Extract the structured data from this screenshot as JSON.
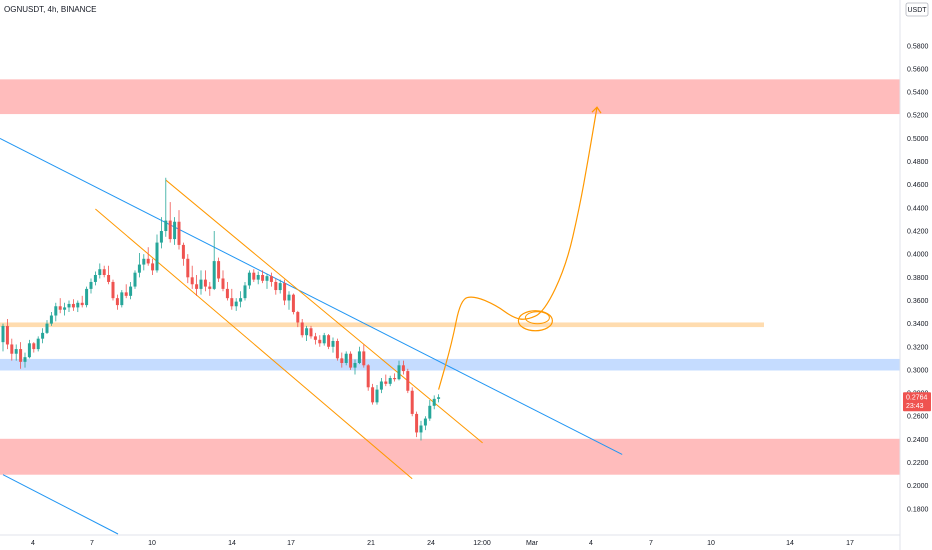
{
  "chart_data": {
    "type": "candlestick",
    "title": "OGNUSDT, 4h, BINANCE",
    "currency": "USDT",
    "y_axis": {
      "ylim": [
        0.16,
        0.604
      ],
      "ticks": [
        "0.1800",
        "0.2000",
        "0.2200",
        "0.2400",
        "0.2600",
        "0.2800",
        "0.3000",
        "0.3200",
        "0.3400",
        "0.3600",
        "0.3800",
        "0.4000",
        "0.4200",
        "0.4400",
        "0.4600",
        "0.4800",
        "0.5000",
        "0.5200",
        "0.5400",
        "0.5600",
        "0.5800"
      ]
    },
    "x_axis": {
      "ticks": [
        "4",
        "7",
        "10",
        "14",
        "17",
        "21",
        "24",
        "12:00",
        "Mar",
        "4",
        "7",
        "10",
        "14",
        "17"
      ]
    },
    "current_price": "0.2764",
    "countdown": "23:43",
    "colors": {
      "up": "#26a69a",
      "down": "#ef5350",
      "price_tag": "#ef5350"
    },
    "zones": [
      {
        "kind": "resistance",
        "low": 0.521,
        "high": 0.551,
        "color": "#ffbcbc"
      },
      {
        "kind": "level",
        "low": 0.337,
        "high": 0.341,
        "color": "#ffdcaf"
      },
      {
        "kind": "level",
        "low": 0.2995,
        "high": 0.3095,
        "color": "#c5dcff"
      },
      {
        "kind": "support",
        "low": 0.2095,
        "high": 0.2405,
        "color": "#ffbcbc"
      }
    ],
    "candles": [
      [
        0.324,
        0.34,
        0.316,
        0.338
      ],
      [
        0.338,
        0.344,
        0.318,
        0.322
      ],
      [
        0.322,
        0.327,
        0.308,
        0.314
      ],
      [
        0.314,
        0.322,
        0.308,
        0.318
      ],
      [
        0.318,
        0.324,
        0.301,
        0.307
      ],
      [
        0.307,
        0.315,
        0.302,
        0.311
      ],
      [
        0.311,
        0.326,
        0.31,
        0.323
      ],
      [
        0.323,
        0.324,
        0.315,
        0.318
      ],
      [
        0.318,
        0.329,
        0.316,
        0.327
      ],
      [
        0.327,
        0.336,
        0.323,
        0.332
      ],
      [
        0.332,
        0.343,
        0.331,
        0.34
      ],
      [
        0.34,
        0.35,
        0.338,
        0.347
      ],
      [
        0.347,
        0.358,
        0.342,
        0.355
      ],
      [
        0.355,
        0.362,
        0.349,
        0.352
      ],
      [
        0.352,
        0.358,
        0.347,
        0.354
      ],
      [
        0.354,
        0.36,
        0.35,
        0.357
      ],
      [
        0.357,
        0.361,
        0.351,
        0.354
      ],
      [
        0.354,
        0.36,
        0.35,
        0.358
      ],
      [
        0.358,
        0.364,
        0.354,
        0.356
      ],
      [
        0.356,
        0.372,
        0.354,
        0.37
      ],
      [
        0.37,
        0.379,
        0.366,
        0.376
      ],
      [
        0.376,
        0.385,
        0.373,
        0.382
      ],
      [
        0.382,
        0.392,
        0.379,
        0.387
      ],
      [
        0.387,
        0.39,
        0.38,
        0.382
      ],
      [
        0.382,
        0.39,
        0.374,
        0.376
      ],
      [
        0.376,
        0.378,
        0.36,
        0.362
      ],
      [
        0.362,
        0.365,
        0.352,
        0.356
      ],
      [
        0.356,
        0.369,
        0.354,
        0.367
      ],
      [
        0.367,
        0.374,
        0.362,
        0.364
      ],
      [
        0.364,
        0.376,
        0.361,
        0.372
      ],
      [
        0.372,
        0.386,
        0.37,
        0.384
      ],
      [
        0.384,
        0.401,
        0.38,
        0.391
      ],
      [
        0.391,
        0.4,
        0.386,
        0.396
      ],
      [
        0.396,
        0.406,
        0.39,
        0.392
      ],
      [
        0.392,
        0.396,
        0.382,
        0.386
      ],
      [
        0.386,
        0.417,
        0.384,
        0.41
      ],
      [
        0.41,
        0.432,
        0.405,
        0.42
      ],
      [
        0.42,
        0.466,
        0.415,
        0.429
      ],
      [
        0.429,
        0.445,
        0.41,
        0.413
      ],
      [
        0.413,
        0.432,
        0.408,
        0.428
      ],
      [
        0.428,
        0.438,
        0.404,
        0.408
      ],
      [
        0.408,
        0.41,
        0.39,
        0.396
      ],
      [
        0.396,
        0.4,
        0.375,
        0.38
      ],
      [
        0.38,
        0.39,
        0.37,
        0.374
      ],
      [
        0.374,
        0.382,
        0.364,
        0.37
      ],
      [
        0.37,
        0.386,
        0.365,
        0.378
      ],
      [
        0.378,
        0.386,
        0.368,
        0.372
      ],
      [
        0.372,
        0.376,
        0.364,
        0.37
      ],
      [
        0.37,
        0.42,
        0.369,
        0.394
      ],
      [
        0.394,
        0.397,
        0.376,
        0.379
      ],
      [
        0.379,
        0.386,
        0.368,
        0.37
      ],
      [
        0.37,
        0.376,
        0.36,
        0.362
      ],
      [
        0.362,
        0.37,
        0.352,
        0.355
      ],
      [
        0.355,
        0.362,
        0.351,
        0.359
      ],
      [
        0.359,
        0.368,
        0.354,
        0.362
      ],
      [
        0.362,
        0.376,
        0.36,
        0.373
      ],
      [
        0.373,
        0.386,
        0.37,
        0.384
      ],
      [
        0.384,
        0.387,
        0.376,
        0.378
      ],
      [
        0.378,
        0.385,
        0.374,
        0.382
      ],
      [
        0.382,
        0.386,
        0.375,
        0.377
      ],
      [
        0.377,
        0.383,
        0.37,
        0.381
      ],
      [
        0.381,
        0.384,
        0.372,
        0.376
      ],
      [
        0.376,
        0.379,
        0.365,
        0.369
      ],
      [
        0.369,
        0.378,
        0.366,
        0.375
      ],
      [
        0.375,
        0.378,
        0.356,
        0.36
      ],
      [
        0.36,
        0.368,
        0.352,
        0.365
      ],
      [
        0.365,
        0.366,
        0.348,
        0.35
      ],
      [
        0.35,
        0.351,
        0.337,
        0.341
      ],
      [
        0.341,
        0.344,
        0.328,
        0.33
      ],
      [
        0.33,
        0.338,
        0.325,
        0.336
      ],
      [
        0.336,
        0.338,
        0.327,
        0.329
      ],
      [
        0.329,
        0.332,
        0.322,
        0.326
      ],
      [
        0.326,
        0.33,
        0.32,
        0.323
      ],
      [
        0.323,
        0.332,
        0.321,
        0.33
      ],
      [
        0.33,
        0.331,
        0.318,
        0.32
      ],
      [
        0.32,
        0.328,
        0.315,
        0.325
      ],
      [
        0.325,
        0.327,
        0.308,
        0.31
      ],
      [
        0.31,
        0.315,
        0.302,
        0.306
      ],
      [
        0.306,
        0.316,
        0.304,
        0.314
      ],
      [
        0.314,
        0.316,
        0.3,
        0.302
      ],
      [
        0.302,
        0.309,
        0.296,
        0.306
      ],
      [
        0.306,
        0.32,
        0.305,
        0.316
      ],
      [
        0.316,
        0.322,
        0.302,
        0.304
      ],
      [
        0.304,
        0.305,
        0.282,
        0.285
      ],
      [
        0.285,
        0.288,
        0.27,
        0.272
      ],
      [
        0.272,
        0.287,
        0.27,
        0.283
      ],
      [
        0.283,
        0.293,
        0.28,
        0.29
      ],
      [
        0.29,
        0.296,
        0.286,
        0.288
      ],
      [
        0.288,
        0.295,
        0.286,
        0.293
      ],
      [
        0.293,
        0.297,
        0.29,
        0.292
      ],
      [
        0.292,
        0.308,
        0.291,
        0.304
      ],
      [
        0.304,
        0.308,
        0.296,
        0.299
      ],
      [
        0.299,
        0.301,
        0.28,
        0.282
      ],
      [
        0.282,
        0.285,
        0.26,
        0.262
      ],
      [
        0.262,
        0.264,
        0.242,
        0.246
      ],
      [
        0.246,
        0.256,
        0.239,
        0.252
      ],
      [
        0.252,
        0.26,
        0.248,
        0.258
      ],
      [
        0.258,
        0.274,
        0.256,
        0.269
      ],
      [
        0.269,
        0.278,
        0.266,
        0.275
      ],
      [
        0.275,
        0.279,
        0.272,
        0.2764
      ]
    ],
    "trendlines": [
      {
        "name": "blue-downtrend-upper",
        "color": "#2196f3",
        "from": [
          0,
          0.5
        ],
        "to": [
          100,
          0.306
        ],
        "extend_to_price": 0.227
      },
      {
        "name": "blue-downtrend-lower",
        "color": "#2196f3",
        "from": [
          0,
          0.2095
        ],
        "to": [
          14,
          0.168
        ]
      },
      {
        "name": "orange-channel-upper",
        "color": "#ff9800",
        "from": [
          37,
          0.464
        ],
        "to": [
          109,
          0.237
        ]
      },
      {
        "name": "orange-channel-lower",
        "color": "#ff9800",
        "from": [
          21,
          0.439
        ],
        "to": [
          93,
          0.206
        ]
      }
    ],
    "projection": {
      "color": "#ff9800",
      "points": [
        [
          99,
          0.283
        ],
        [
          102,
          0.323
        ],
        [
          104,
          0.361
        ],
        [
          107,
          0.364
        ],
        [
          112,
          0.356
        ],
        [
          116,
          0.345
        ],
        [
          119,
          0.343
        ],
        [
          123,
          0.35
        ],
        [
          128,
          0.39
        ],
        [
          131,
          0.44
        ],
        [
          133,
          0.482
        ],
        [
          135,
          0.527
        ]
      ],
      "arrow": true
    },
    "annotation_circle": {
      "center": [
        121,
        0.3425
      ],
      "kind": "ellipse"
    }
  }
}
